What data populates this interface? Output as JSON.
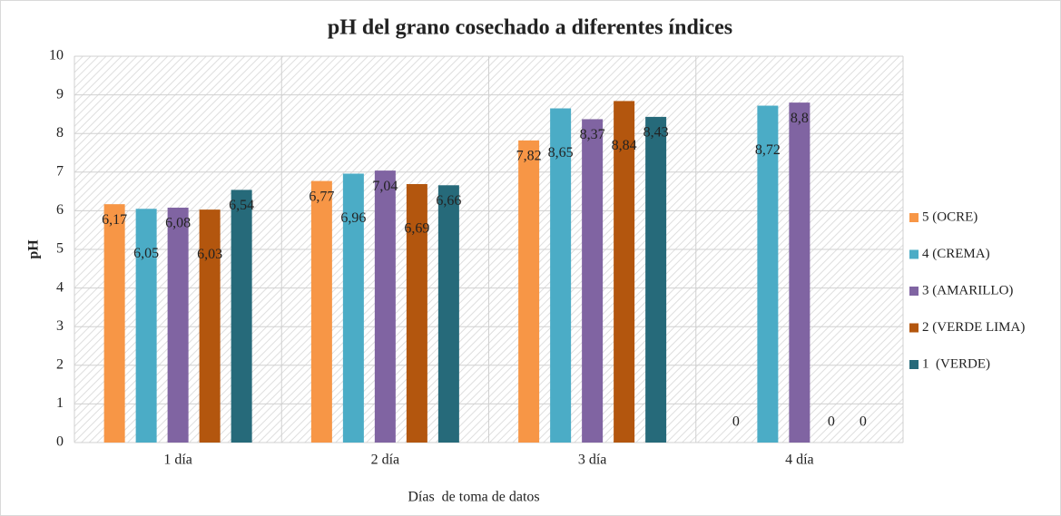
{
  "chart_data": {
    "type": "bar",
    "title": "pH del grano cosechado a diferentes índices",
    "xlabel": "Días  de toma de datos",
    "ylabel": "pH",
    "categories": [
      "1 día",
      "2 día",
      "3 día",
      "4 día"
    ],
    "series": [
      {
        "name": "5 (OCRE)",
        "color": "#f79646",
        "values": [
          6.17,
          6.77,
          7.82,
          0
        ],
        "value_labels": [
          "6,17",
          "6,77",
          "7,82",
          "0"
        ]
      },
      {
        "name": "4 (CREMA)",
        "color": "#4bacc6",
        "values": [
          6.05,
          6.96,
          8.65,
          8.72
        ],
        "value_labels": [
          "6,05",
          "6,96",
          "8,65",
          "8,72"
        ]
      },
      {
        "name": "3 (AMARILLO)",
        "color": "#8064a2",
        "values": [
          6.08,
          7.04,
          8.37,
          8.8
        ],
        "value_labels": [
          "6,08",
          "7,04",
          "8,37",
          "8,8"
        ]
      },
      {
        "name": "2 (VERDE LIMA)",
        "color": "#b3560e",
        "values": [
          6.03,
          6.69,
          8.84,
          0
        ],
        "value_labels": [
          "6,03",
          "6,69",
          "8,84",
          "0"
        ]
      },
      {
        "name": "1  (VERDE)",
        "color": "#266a7a",
        "values": [
          6.54,
          6.66,
          8.43,
          0
        ],
        "value_labels": [
          "6,54",
          "6,66",
          "8,43",
          "0"
        ]
      }
    ],
    "ylim": [
      0,
      10
    ],
    "yticks": [
      0,
      1,
      2,
      3,
      4,
      5,
      6,
      7,
      8,
      9,
      10
    ],
    "grid": true,
    "legend": "right"
  }
}
